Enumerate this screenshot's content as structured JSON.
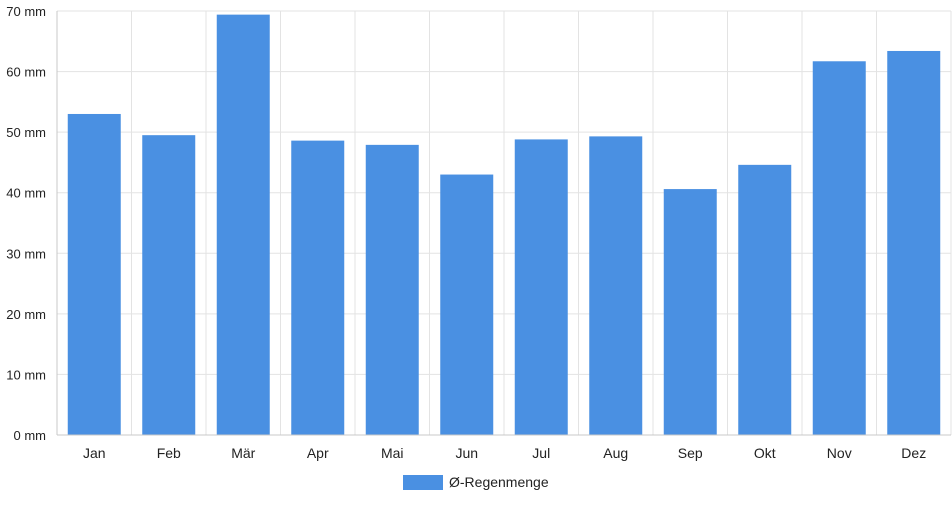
{
  "chart_data": {
    "type": "bar",
    "categories": [
      "Jan",
      "Feb",
      "Mär",
      "Apr",
      "Mai",
      "Jun",
      "Jul",
      "Aug",
      "Sep",
      "Okt",
      "Nov",
      "Dez"
    ],
    "series": [
      {
        "name": "Ø-Regenmenge",
        "values": [
          53,
          49.5,
          69.4,
          48.6,
          47.9,
          43,
          48.8,
          49.3,
          40.6,
          44.6,
          61.7,
          63.4
        ],
        "color": "#4a90e2"
      }
    ],
    "y_ticks": [
      "0 mm",
      "10 mm",
      "20 mm",
      "30 mm",
      "40 mm",
      "50 mm",
      "60 mm",
      "70 mm"
    ],
    "y_unit": "mm",
    "ylim": [
      0,
      70
    ],
    "grid": true,
    "legend_position": "bottom-center",
    "title": "",
    "xlabel": "",
    "ylabel": ""
  }
}
